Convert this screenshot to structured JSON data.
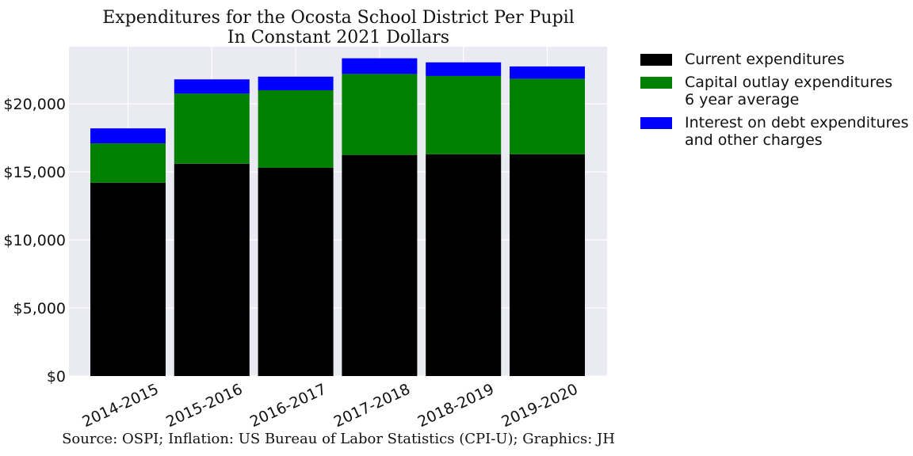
{
  "chart_data": {
    "type": "bar",
    "stacked": true,
    "title": [
      "Expenditures for the Ocosta School District Per Pupil",
      "In Constant 2021 Dollars"
    ],
    "xlabel": "",
    "ylabel": "",
    "categories": [
      "2014-2015",
      "2015-2016",
      "2016-2017",
      "2017-2018",
      "2018-2019",
      "2019-2020"
    ],
    "series": [
      {
        "name": "Current expenditures",
        "color": "#000000",
        "values": [
          14200,
          15600,
          15300,
          16250,
          16300,
          16300
        ]
      },
      {
        "name": "Capital outlay expenditures\n6 year average",
        "color": "#008000",
        "values": [
          2900,
          5150,
          5700,
          5950,
          5750,
          5550
        ]
      },
      {
        "name": "Interest on debt expenditures\nand other charges",
        "color": "#0000ff",
        "values": [
          1100,
          1050,
          1000,
          1150,
          1000,
          900
        ]
      }
    ],
    "ylim": [
      0,
      24200
    ],
    "yticks": [
      0,
      5000,
      10000,
      15000,
      20000
    ],
    "ytick_labels": [
      "$0",
      "$5,000",
      "$10,000",
      "$15,000",
      "$20,000"
    ],
    "grid": true,
    "legend_position": "outside-right"
  },
  "source_note": "Source: OSPI; Inflation: US Bureau of Labor Statistics (CPI-U); Graphics: JH"
}
